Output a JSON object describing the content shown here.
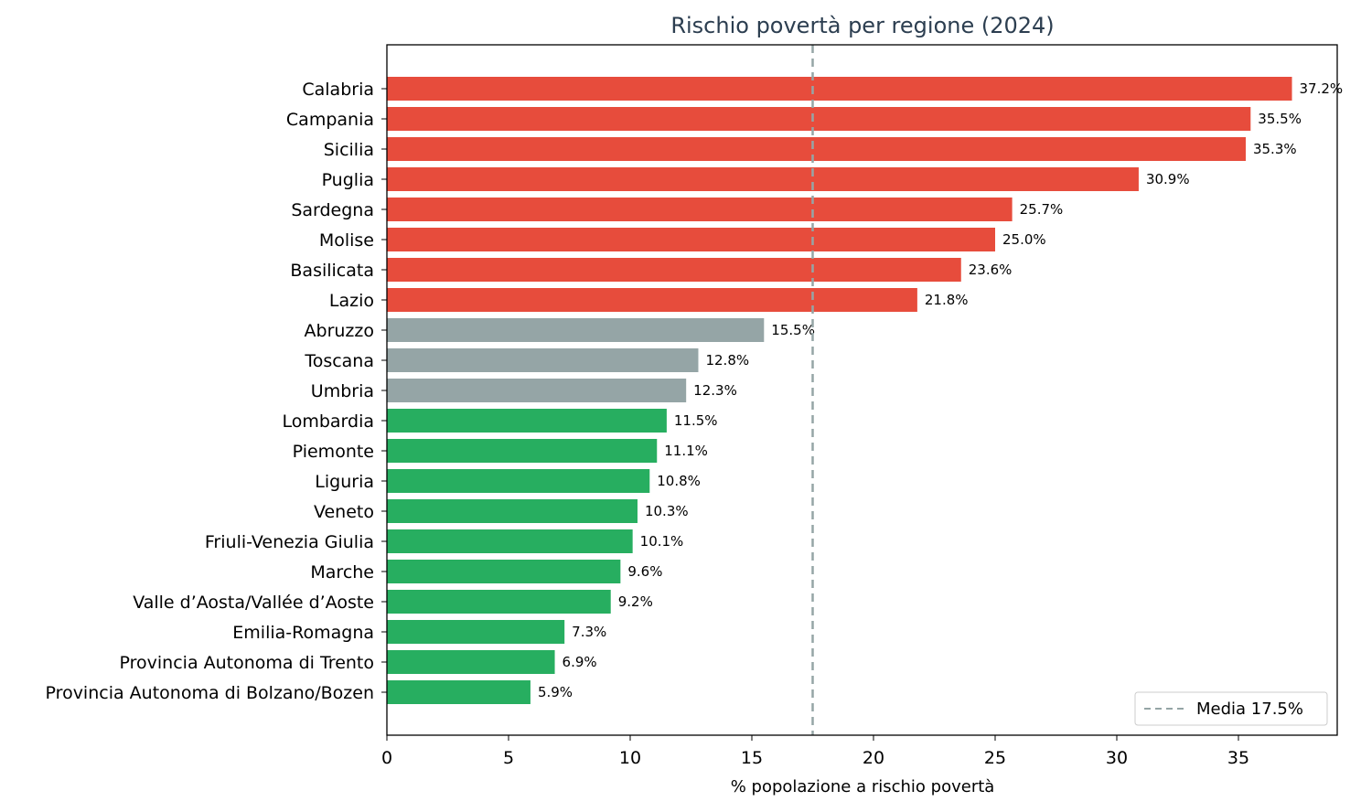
{
  "chart_data": {
    "type": "bar",
    "orientation": "horizontal",
    "title": "Rischio povertà per regione (2024)",
    "xlabel": "% popolazione a rischio povertà",
    "ylabel": "",
    "xlim": [
      0,
      39.06
    ],
    "xticks": [
      0,
      5,
      10,
      15,
      20,
      25,
      30,
      35
    ],
    "grid": false,
    "legend": {
      "placement": "bottom-right",
      "entries": [
        {
          "label": "Media 17.5%",
          "style": "dashed",
          "color": "#95a5a6"
        }
      ]
    },
    "reference_line": {
      "value": 17.5,
      "label": "Media 17.5%",
      "color": "#95a5a6",
      "style": "dashed"
    },
    "colors": {
      "high": "#e74c3c",
      "mid": "#95a5a6",
      "low": "#27ae60",
      "title": "#2c3e50",
      "text": "#000000"
    },
    "categories": [
      "Calabria",
      "Campania",
      "Sicilia",
      "Puglia",
      "Sardegna",
      "Molise",
      "Basilicata",
      "Lazio",
      "Abruzzo",
      "Toscana",
      "Umbria",
      "Lombardia",
      "Piemonte",
      "Liguria",
      "Veneto",
      "Friuli-Venezia Giulia",
      "Marche",
      "Valle d’Aosta/Vallée d’Aoste",
      "Emilia-Romagna",
      "Provincia Autonoma di Trento",
      "Provincia Autonoma di Bolzano/Bozen"
    ],
    "values": [
      37.2,
      35.5,
      35.3,
      30.9,
      25.7,
      25.0,
      23.6,
      21.8,
      15.5,
      12.8,
      12.3,
      11.5,
      11.1,
      10.8,
      10.3,
      10.1,
      9.6,
      9.2,
      7.3,
      6.9,
      5.9
    ],
    "value_labels": [
      "37.2%",
      "35.5%",
      "35.3%",
      "30.9%",
      "25.7%",
      "25.0%",
      "23.6%",
      "21.8%",
      "15.5%",
      "12.8%",
      "12.3%",
      "11.5%",
      "11.1%",
      "10.8%",
      "10.3%",
      "10.1%",
      "9.6%",
      "9.2%",
      "7.3%",
      "6.9%",
      "5.9%"
    ],
    "bar_groups": [
      "high",
      "high",
      "high",
      "high",
      "high",
      "high",
      "high",
      "high",
      "mid",
      "mid",
      "mid",
      "low",
      "low",
      "low",
      "low",
      "low",
      "low",
      "low",
      "low",
      "low",
      "low"
    ]
  }
}
